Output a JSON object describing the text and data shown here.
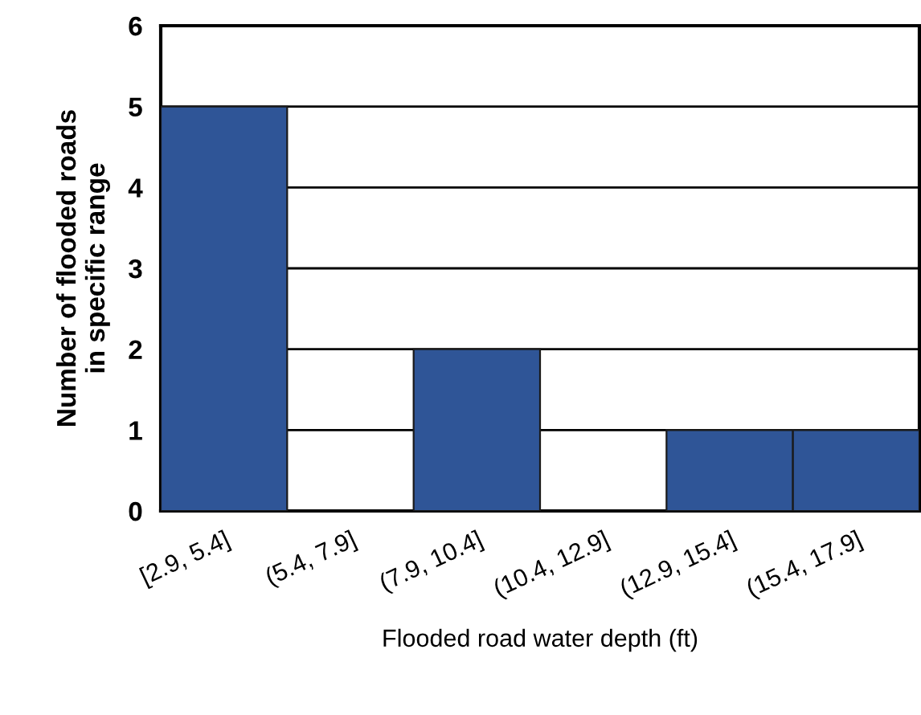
{
  "chart_data": {
    "type": "bar",
    "xlabel": "Flooded road water depth (ft)",
    "ylabel": "Number of flooded roads\nin specific range",
    "categories": [
      "[2.9, 5.4]",
      "(5.4, 7.9]",
      "(7.9, 10.4]",
      "(10.4, 12.9]",
      "(12.9, 15.4]",
      "(15.4, 17.9]"
    ],
    "values": [
      5,
      0,
      2,
      0,
      1,
      1
    ],
    "color": "#2f5597",
    "ylim": [
      0,
      6
    ],
    "yticks": [
      0,
      1,
      2,
      3,
      4,
      5,
      6
    ],
    "grid": "y"
  }
}
